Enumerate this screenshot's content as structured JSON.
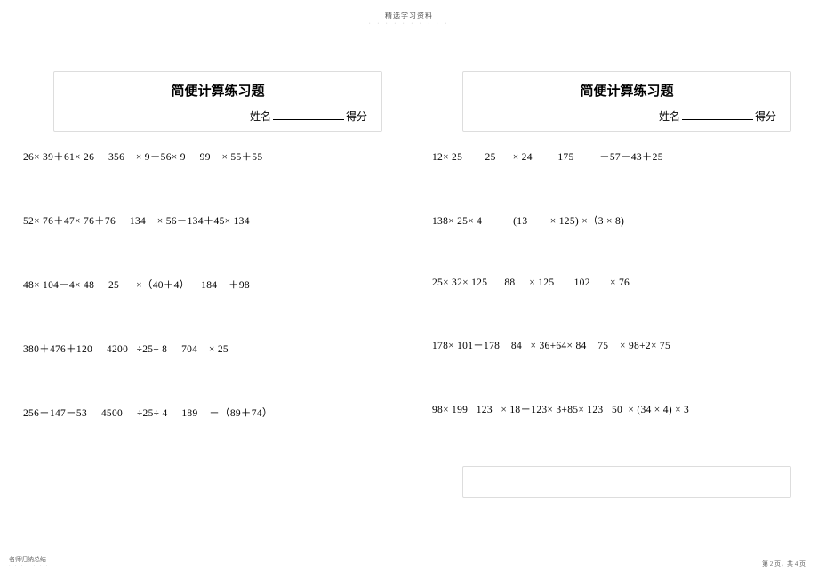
{
  "header": {
    "main": "精选学习资料",
    "sub": "· · · · · · · · · ·"
  },
  "left": {
    "title": "简便计算练习题",
    "name_label": "姓名",
    "score_label": "得分",
    "rows": [
      "26× 39＋61× 26     356    × 9－56× 9     99    × 55＋55",
      "52× 76＋47× 76＋76     134    × 56－134＋45× 134",
      "48× 104－4× 48     25      ×（40＋4）    184    ＋98",
      "380＋476＋120     4200   ÷25÷ 8     704    × 25",
      "256－147－53     4500     ÷25÷ 4     189    －（89＋74）"
    ]
  },
  "right": {
    "title": "简便计算练习题",
    "name_label": "姓名",
    "score_label": "得分",
    "rows": [
      "12× 25        25      × 24         175         －57－43＋25",
      "138× 25× 4           (13        × 125) ×（3 × 8)",
      "25× 32× 125      88     × 125       102       × 76",
      "178× 101－178    84   × 36+64× 84    75    × 98+2× 75",
      "98× 199   123   × 18－123× 3+85× 123   50  × (34 × 4) × 3"
    ]
  },
  "footer": {
    "left_main": "名师归纳总结",
    "left_sub": "· · · · · · ·",
    "right": "第 2 页，共 4 页"
  }
}
